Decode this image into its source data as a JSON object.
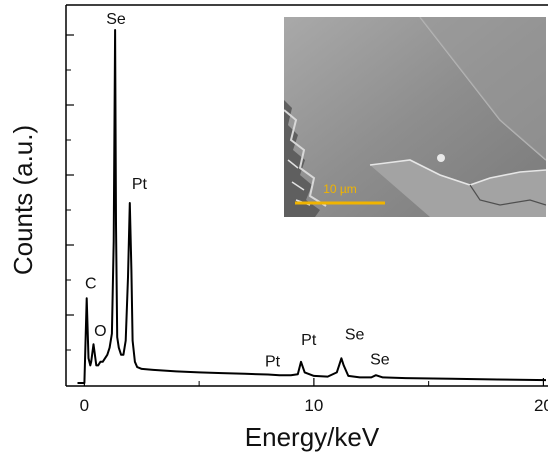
{
  "chart_data": {
    "type": "line",
    "xlabel": "Energy/keV",
    "ylabel": "Counts (a.u.)",
    "xlim": [
      -0.8,
      20.2
    ],
    "ylim": [
      0,
      1.0
    ],
    "x_ticks": [
      0,
      10,
      20
    ],
    "x_tick_labels": [
      "0",
      "10",
      "20"
    ],
    "grid": false,
    "series": [
      {
        "line_color": "#000000",
        "x": [
          -0.3,
          0.0,
          0.1,
          0.18,
          0.26,
          0.3,
          0.4,
          0.52,
          0.6,
          0.7,
          0.8,
          0.9,
          1.0,
          1.1,
          1.2,
          1.28,
          1.34,
          1.38,
          1.43,
          1.5,
          1.6,
          1.7,
          1.8,
          1.9,
          1.98,
          2.05,
          2.1,
          2.2,
          2.3,
          2.5,
          3,
          4,
          5,
          6,
          7,
          8,
          8.5,
          9,
          9.3,
          9.44,
          9.6,
          10,
          10.6,
          11.0,
          11.1,
          11.2,
          11.3,
          11.5,
          12.0,
          12.5,
          12.7,
          13,
          14,
          16,
          18,
          20.2
        ],
        "y": [
          0.0,
          0.0,
          0.24,
          0.07,
          0.05,
          0.06,
          0.11,
          0.05,
          0.05,
          0.06,
          0.06,
          0.07,
          0.08,
          0.1,
          0.14,
          0.4,
          1.0,
          0.45,
          0.13,
          0.1,
          0.08,
          0.08,
          0.12,
          0.3,
          0.51,
          0.32,
          0.12,
          0.06,
          0.045,
          0.04,
          0.037,
          0.033,
          0.03,
          0.028,
          0.026,
          0.024,
          0.022,
          0.022,
          0.025,
          0.06,
          0.03,
          0.02,
          0.018,
          0.03,
          0.05,
          0.07,
          0.05,
          0.02,
          0.016,
          0.016,
          0.022,
          0.016,
          0.014,
          0.012,
          0.01,
          0.008
        ]
      }
    ],
    "annotations": [
      {
        "text": "Se",
        "x": 1.38,
        "y": 1.0
      },
      {
        "text": "Pt",
        "x": 2.05,
        "y": 0.51
      },
      {
        "text": "C",
        "x": 0.28,
        "y": 0.24
      },
      {
        "text": "O",
        "x": 0.52,
        "y": 0.11
      },
      {
        "text": "Pt",
        "x": 8.2,
        "y": 0.03
      },
      {
        "text": "Pt",
        "x": 9.6,
        "y": 0.085
      },
      {
        "text": "Se",
        "x": 11.6,
        "y": 0.1
      },
      {
        "text": "Se",
        "x": 12.7,
        "y": 0.035
      }
    ]
  },
  "inset": {
    "type": "SEM micrograph",
    "scale_bar_label": "10 µm",
    "scale_bar_color": "#f0b400"
  }
}
